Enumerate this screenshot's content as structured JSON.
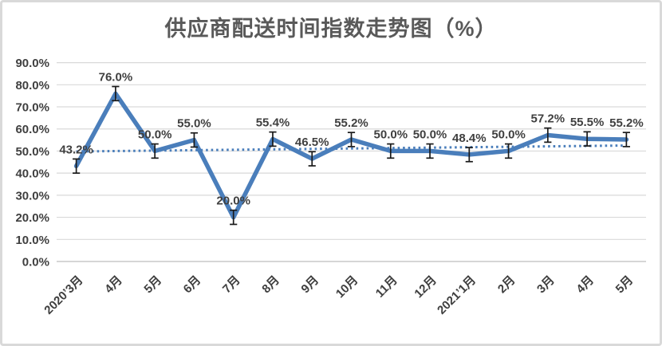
{
  "title": "供应商配送时间指数走势图（%）",
  "chart_data": {
    "type": "line",
    "title": "供应商配送时间指数走势图（%）",
    "categories": [
      "2020’3月",
      "4月",
      "5月",
      "6月",
      "7月",
      "8月",
      "9月",
      "10月",
      "11月",
      "12月",
      "2021’1月",
      "2月",
      "3月",
      "4月",
      "5月"
    ],
    "series": [
      {
        "name": "供应商配送时间指数",
        "values": [
          43.2,
          76.0,
          50.0,
          55.0,
          20.0,
          55.4,
          46.5,
          55.2,
          50.0,
          50.0,
          48.4,
          50.0,
          57.2,
          55.5,
          55.2
        ]
      }
    ],
    "data_labels": [
      "43.2%",
      "76.0%",
      "50.0%",
      "55.0%",
      "20.0%",
      "55.4%",
      "46.5%",
      "55.2%",
      "50.0%",
      "50.0%",
      "48.4%",
      "50.0%",
      "57.2%",
      "55.5%",
      "55.2%"
    ],
    "y_tick_labels": [
      "0.0%",
      "10.0%",
      "20.0%",
      "30.0%",
      "40.0%",
      "50.0%",
      "60.0%",
      "70.0%",
      "80.0%",
      "90.0%"
    ],
    "ylim": [
      0,
      90
    ],
    "y_step": 10,
    "grid": true,
    "legend": "none",
    "error_bar_pct": 3.2,
    "trendline": {
      "style": "dotted",
      "start": 49.8,
      "end": 52.5
    },
    "colors": {
      "series": "#4a7ebb",
      "trendline": "#4a7ebb",
      "error_bar": "#1a1a1a",
      "gridline": "#d9d9d9",
      "axis_line": "#c9c9c9",
      "label": "#3f3f3f",
      "title": "#595959"
    }
  }
}
